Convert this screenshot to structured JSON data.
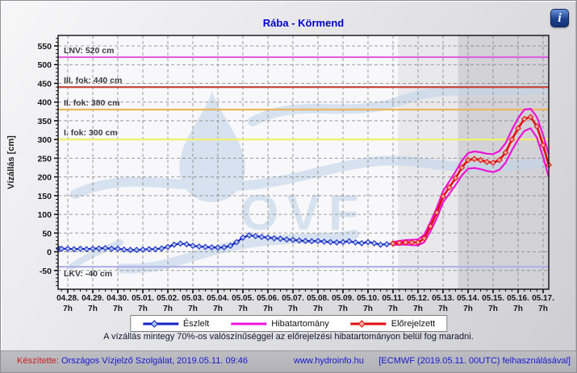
{
  "info_button": {
    "glyph": "i"
  },
  "chart_data": {
    "type": "line",
    "title": "Rába - Körmend",
    "ylabel": "Vízállás [cm]",
    "ylim": [
      -100,
      578
    ],
    "grid": true,
    "legend_position": "bottom",
    "yticks": [
      -50,
      0,
      50,
      100,
      150,
      200,
      250,
      300,
      350,
      400,
      450,
      500,
      550
    ],
    "x_tick_dates": [
      "04.28.",
      "04.29.",
      "04.30.",
      "05.01.",
      "05.02.",
      "05.03.",
      "05.04.",
      "05.05.",
      "05.06.",
      "05.07.",
      "05.08.",
      "05.09.",
      "05.10.",
      "05.11.",
      "05.12.",
      "05.13.",
      "05.14.",
      "05.15.",
      "05.16.",
      "05.17."
    ],
    "x_tick_sub": "7h",
    "watermark_text": "OVF",
    "regions": [
      {
        "name": "forecast-region-near",
        "from_day": 13.2,
        "to_day": 15.6,
        "color": "#e9e9ec"
      },
      {
        "name": "forecast-region-far",
        "from_day": 15.6,
        "to_day": 19.3,
        "color": "#d2d2d7"
      }
    ],
    "reference_lines": [
      {
        "label": "LNV: 520 cm",
        "value": 520,
        "color": "#e15fe1"
      },
      {
        "label": "III. fok: 440 cm",
        "value": 440,
        "color": "#c8483e"
      },
      {
        "label": "II. fok: 380 cm",
        "value": 380,
        "color": "#eab55e"
      },
      {
        "label": "I. fok: 300 cm",
        "value": 300,
        "color": "#f2ef70"
      },
      {
        "label": "LKV: -40 cm",
        "value": -40,
        "color": "#b2b2e8"
      }
    ],
    "series": [
      {
        "name": "Észlelt",
        "role": "observed",
        "color": "#1520c4",
        "marker_fill": "#a9c7e9",
        "start_day": -0.5,
        "step_days": 0.25,
        "values": [
          8,
          8,
          8,
          7,
          8,
          7,
          8,
          9,
          10,
          8,
          8,
          6,
          5,
          5,
          6,
          7,
          7,
          9,
          13,
          19,
          22,
          20,
          16,
          14,
          13,
          12,
          11,
          12,
          16,
          26,
          38,
          44,
          42,
          40,
          38,
          36,
          35,
          33,
          32,
          30,
          29,
          28,
          29,
          27,
          26,
          25,
          26,
          28,
          25,
          23,
          26,
          23,
          19,
          20,
          22
        ]
      },
      {
        "name": "Hibatartomány (felső)",
        "role": "band-upper",
        "color": "#ee13d6",
        "start_day": 13.0,
        "step_days": 0.25,
        "values": [
          26,
          29,
          31,
          32,
          33,
          46,
          80,
          118,
          162,
          188,
          214,
          243,
          264,
          268,
          266,
          262,
          261,
          269,
          290,
          326,
          357,
          380,
          382,
          360,
          312,
          260
        ]
      },
      {
        "name": "Hibatartomány (alsó)",
        "role": "band-lower",
        "color": "#ee13d6",
        "start_day": 13.0,
        "step_days": 0.25,
        "values": [
          18,
          19,
          19,
          18,
          17,
          26,
          55,
          90,
          132,
          155,
          178,
          204,
          222,
          224,
          221,
          216,
          213,
          219,
          238,
          271,
          300,
          323,
          330,
          305,
          253,
          200
        ]
      },
      {
        "name": "Előrejelzett",
        "role": "forecast",
        "color": "#e20e0e",
        "marker_fill": "#f2a49b",
        "start_day": 13.0,
        "step_days": 0.25,
        "values": [
          22,
          24,
          25,
          25,
          25,
          36,
          68,
          105,
          148,
          172,
          197,
          225,
          245,
          248,
          245,
          240,
          238,
          245,
          265,
          300,
          330,
          355,
          360,
          335,
          285,
          232
        ]
      }
    ],
    "legend": [
      {
        "label": "Észlelt",
        "color": "#1520c4",
        "marker_fill": "#a9c7e9",
        "marker": true
      },
      {
        "label": "Hibatartomány",
        "color": "#ee13d6",
        "marker": false
      },
      {
        "label": "Előrejelzett",
        "color": "#e20e0e",
        "marker_fill": "#f2a49b",
        "marker": true
      }
    ]
  },
  "note": {
    "text": "A vízállás mintegy 70%-os valószínűséggel az előrejelzési hibatartományon belül fog maradni."
  },
  "footer": {
    "made_by_label": "Készítette:",
    "made_by_value": "Országos Vízjelző Szolgálat, 2019.05.11. 09:46",
    "link": "www.hydroinfo.hu",
    "source": "[ECMWF (2019.05.11. 00UTC) felhasználásával]"
  }
}
